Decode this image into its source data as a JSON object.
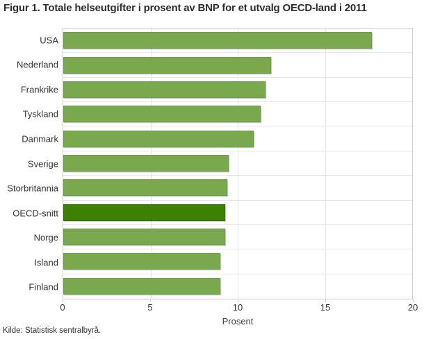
{
  "title": "Figur 1. Totale helseutgifter i prosent av BNP for et utvalg OECD-land i 2011",
  "source_note": "Kilde: Statistisk sentralbyrå.",
  "colors": {
    "background": "#ffffff",
    "bar": "#7aa84f",
    "bar_border": "#6f9c46",
    "bar_highlight": "#3c8200",
    "bar_highlight_border": "#356f03",
    "grid": "#e6e6e6",
    "plot_border": "#cccccc",
    "text": "#333333"
  },
  "chart_data": {
    "type": "bar",
    "orientation": "horizontal",
    "title": "Figur 1. Totale helseutgifter i prosent av BNP for et utvalg OECD-land i 2011",
    "categories": [
      "USA",
      "Nederland",
      "Frankrike",
      "Tyskland",
      "Danmark",
      "Sverige",
      "Storbritannia",
      "OECD-snitt",
      "Norge",
      "Island",
      "Finland"
    ],
    "values": [
      17.7,
      11.9,
      11.6,
      11.3,
      10.9,
      9.5,
      9.4,
      9.3,
      9.3,
      9.0,
      9.0
    ],
    "highlight_category": "OECD-snitt",
    "highlight_index": 7,
    "xlabel": "Prosent",
    "xlim": [
      0,
      20
    ],
    "xticks": [
      0,
      5,
      10,
      15,
      20
    ],
    "grid": true,
    "legend_position": "none",
    "bar_color": "#7aa84f",
    "highlight_color": "#3c8200"
  }
}
